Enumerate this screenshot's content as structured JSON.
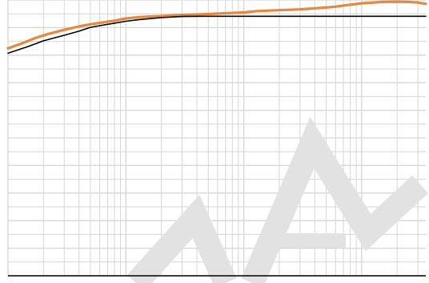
{
  "chart_data": {
    "type": "line",
    "title": "",
    "xlabel": "",
    "ylabel": "",
    "x_scale": "log",
    "xlim": [
      1,
      3500
    ],
    "ylim": [
      0,
      100
    ],
    "grid": true,
    "grid_color": "#d6d6d6",
    "frame_color": "#000000",
    "watermark": "TAL",
    "watermark_color": "#e2e2e2",
    "series": [
      {
        "color": "#e8883c",
        "x": [
          1,
          1.3,
          1.7,
          2.2,
          3,
          4,
          5,
          6.4,
          8,
          10,
          13,
          20,
          30,
          50,
          100,
          130,
          200,
          300,
          500,
          600,
          700,
          1000,
          1500,
          2000,
          2500,
          3000,
          3500
        ],
        "y": [
          82.5,
          84.2,
          86.2,
          87.7,
          89.2,
          90.4,
          91.2,
          91.9,
          92.5,
          93.3,
          93.8,
          94.2,
          94.6,
          94.9,
          95.5,
          96.0,
          96.3,
          96.6,
          97.3,
          97.6,
          98.0,
          98.8,
          99.3,
          99.4,
          99.3,
          99.1,
          98.6
        ]
      },
      {
        "color": "#000000",
        "x": [
          1,
          1.5,
          2,
          3,
          4,
          5,
          6,
          8,
          10,
          13,
          20,
          30,
          50,
          100,
          200,
          500,
          1000,
          3500
        ],
        "y": [
          80.7,
          83.2,
          85.2,
          87.2,
          88.7,
          90.1,
          90.7,
          91.6,
          92.3,
          92.9,
          93.6,
          94.0,
          94.1,
          94.1,
          94.1,
          94.1,
          94.1,
          94.1
        ]
      }
    ]
  }
}
